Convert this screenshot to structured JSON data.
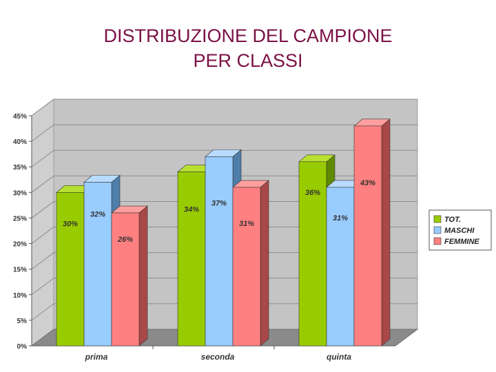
{
  "page": {
    "title_line1": "DISTRIBUZIONE DEL CAMPIONE",
    "title_line2": "PER CLASSI"
  },
  "chart_data": {
    "type": "bar",
    "categories": [
      "prima",
      "seconda",
      "quinta"
    ],
    "series": [
      {
        "name": "TOT.",
        "values": [
          30,
          34,
          36
        ],
        "labels": [
          "30%",
          "34%",
          "36%"
        ],
        "color": "#99cc00",
        "side": "#5f8a00",
        "top": "#b8e030"
      },
      {
        "name": "MASCHI",
        "values": [
          32,
          37,
          31
        ],
        "labels": [
          "32%",
          "37%",
          "31%"
        ],
        "color": "#99ccff",
        "side": "#4f7fa8",
        "top": "#b8dcff"
      },
      {
        "name": "FEMMINE",
        "values": [
          26,
          31,
          43
        ],
        "labels": [
          "26%",
          "31%",
          "43%"
        ],
        "color": "#ff8080",
        "side": "#a84848",
        "top": "#ff9e9e"
      }
    ],
    "y_ticks": [
      "0%",
      "5%",
      "10%",
      "15%",
      "20%",
      "25%",
      "30%",
      "35%",
      "40%",
      "45%"
    ],
    "ylim": [
      0,
      45
    ],
    "legend_position": "right",
    "grid": true,
    "style": "3d-clustered-bar"
  }
}
